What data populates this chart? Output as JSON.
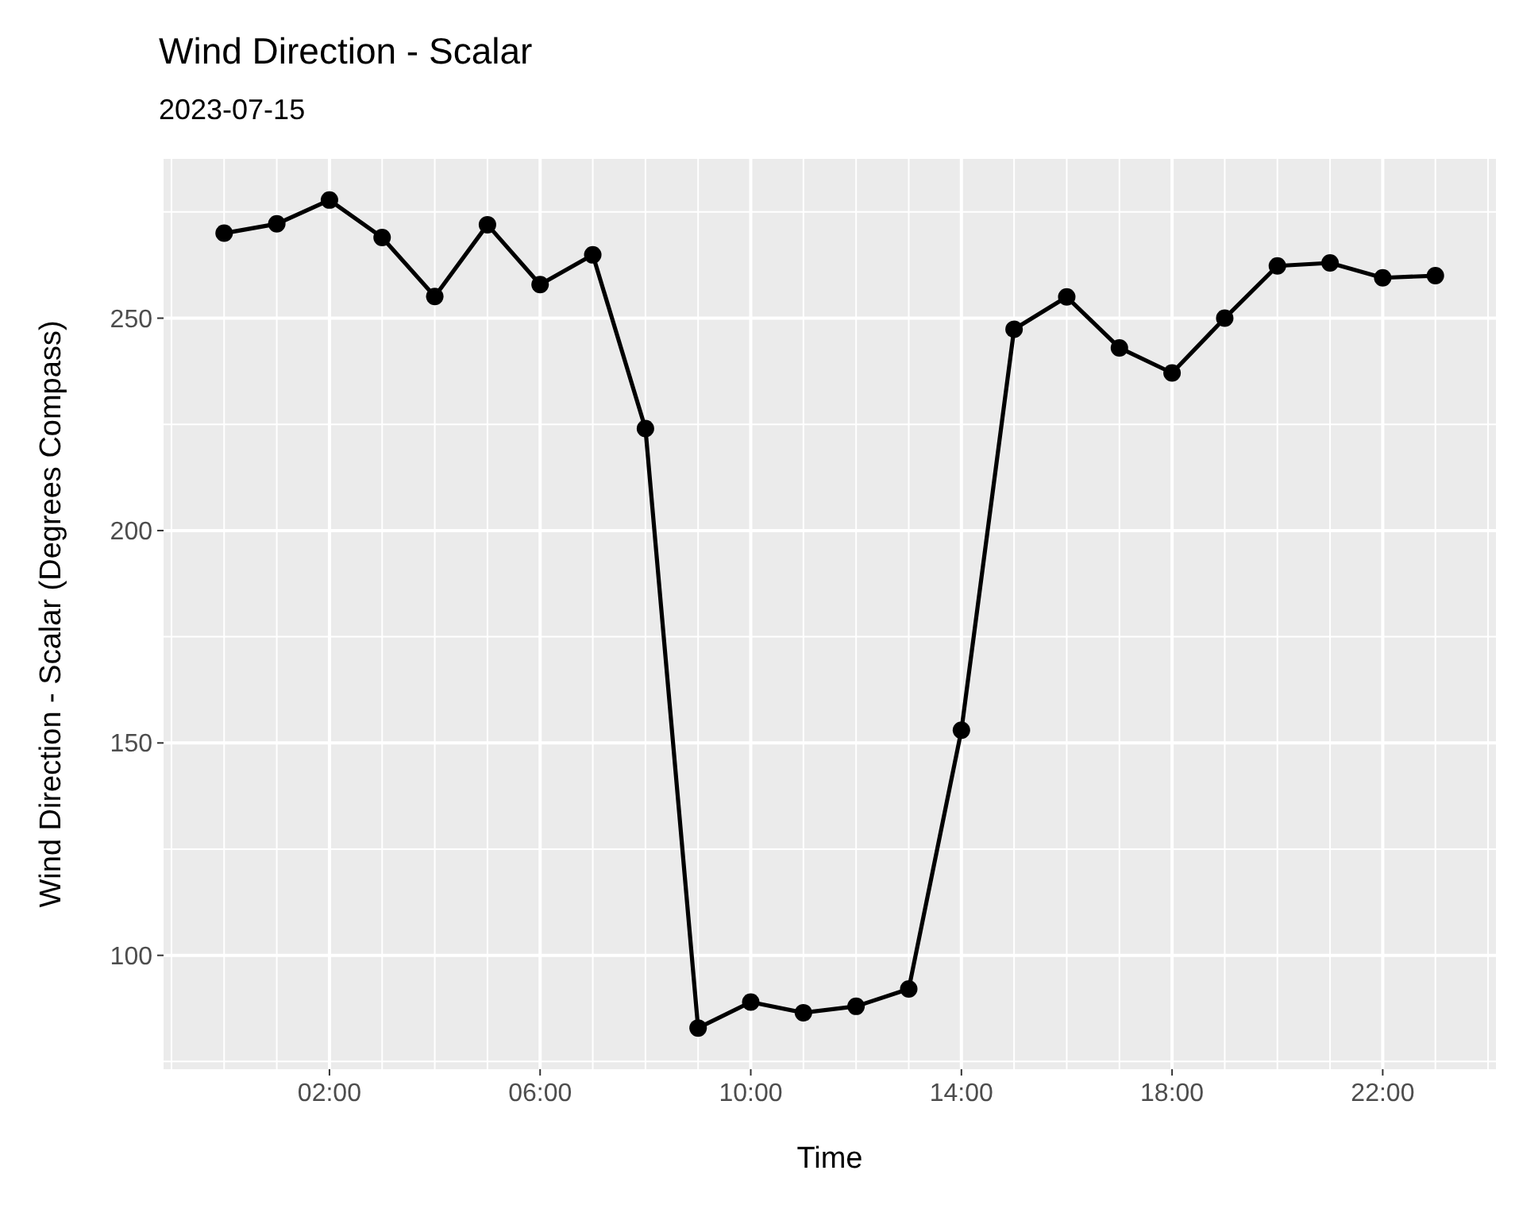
{
  "chart_data": {
    "type": "line",
    "title": "Wind Direction - Scalar",
    "subtitle": "2023-07-15",
    "xlabel": "Time",
    "ylabel": "Wind Direction - Scalar (Degrees Compass)",
    "x": [
      0,
      1,
      2,
      3,
      4,
      5,
      6,
      7,
      8,
      9,
      10,
      11,
      12,
      13,
      14,
      15,
      16,
      17,
      18,
      19,
      20,
      21,
      22,
      23
    ],
    "series": [
      {
        "color": "#000000",
        "values": [
          270,
          272.2,
          277.8,
          269,
          255.1,
          272,
          257.9,
          264.9,
          224,
          82.9,
          89,
          86.5,
          88,
          92.1,
          153,
          247.4,
          255,
          243,
          237.1,
          250,
          262.3,
          263,
          259.5,
          260
        ]
      }
    ],
    "xlim": [
      -1.15,
      24.15
    ],
    "ylim": [
      73.2,
      287.5
    ],
    "xticks": [
      {
        "value": 2,
        "label": "02:00"
      },
      {
        "value": 6,
        "label": "06:00"
      },
      {
        "value": 10,
        "label": "10:00"
      },
      {
        "value": 14,
        "label": "14:00"
      },
      {
        "value": 18,
        "label": "18:00"
      },
      {
        "value": 22,
        "label": "22:00"
      }
    ],
    "yticks": [
      100,
      150,
      200,
      250
    ],
    "grid": true,
    "marker": "circle",
    "line_style": "solid"
  }
}
